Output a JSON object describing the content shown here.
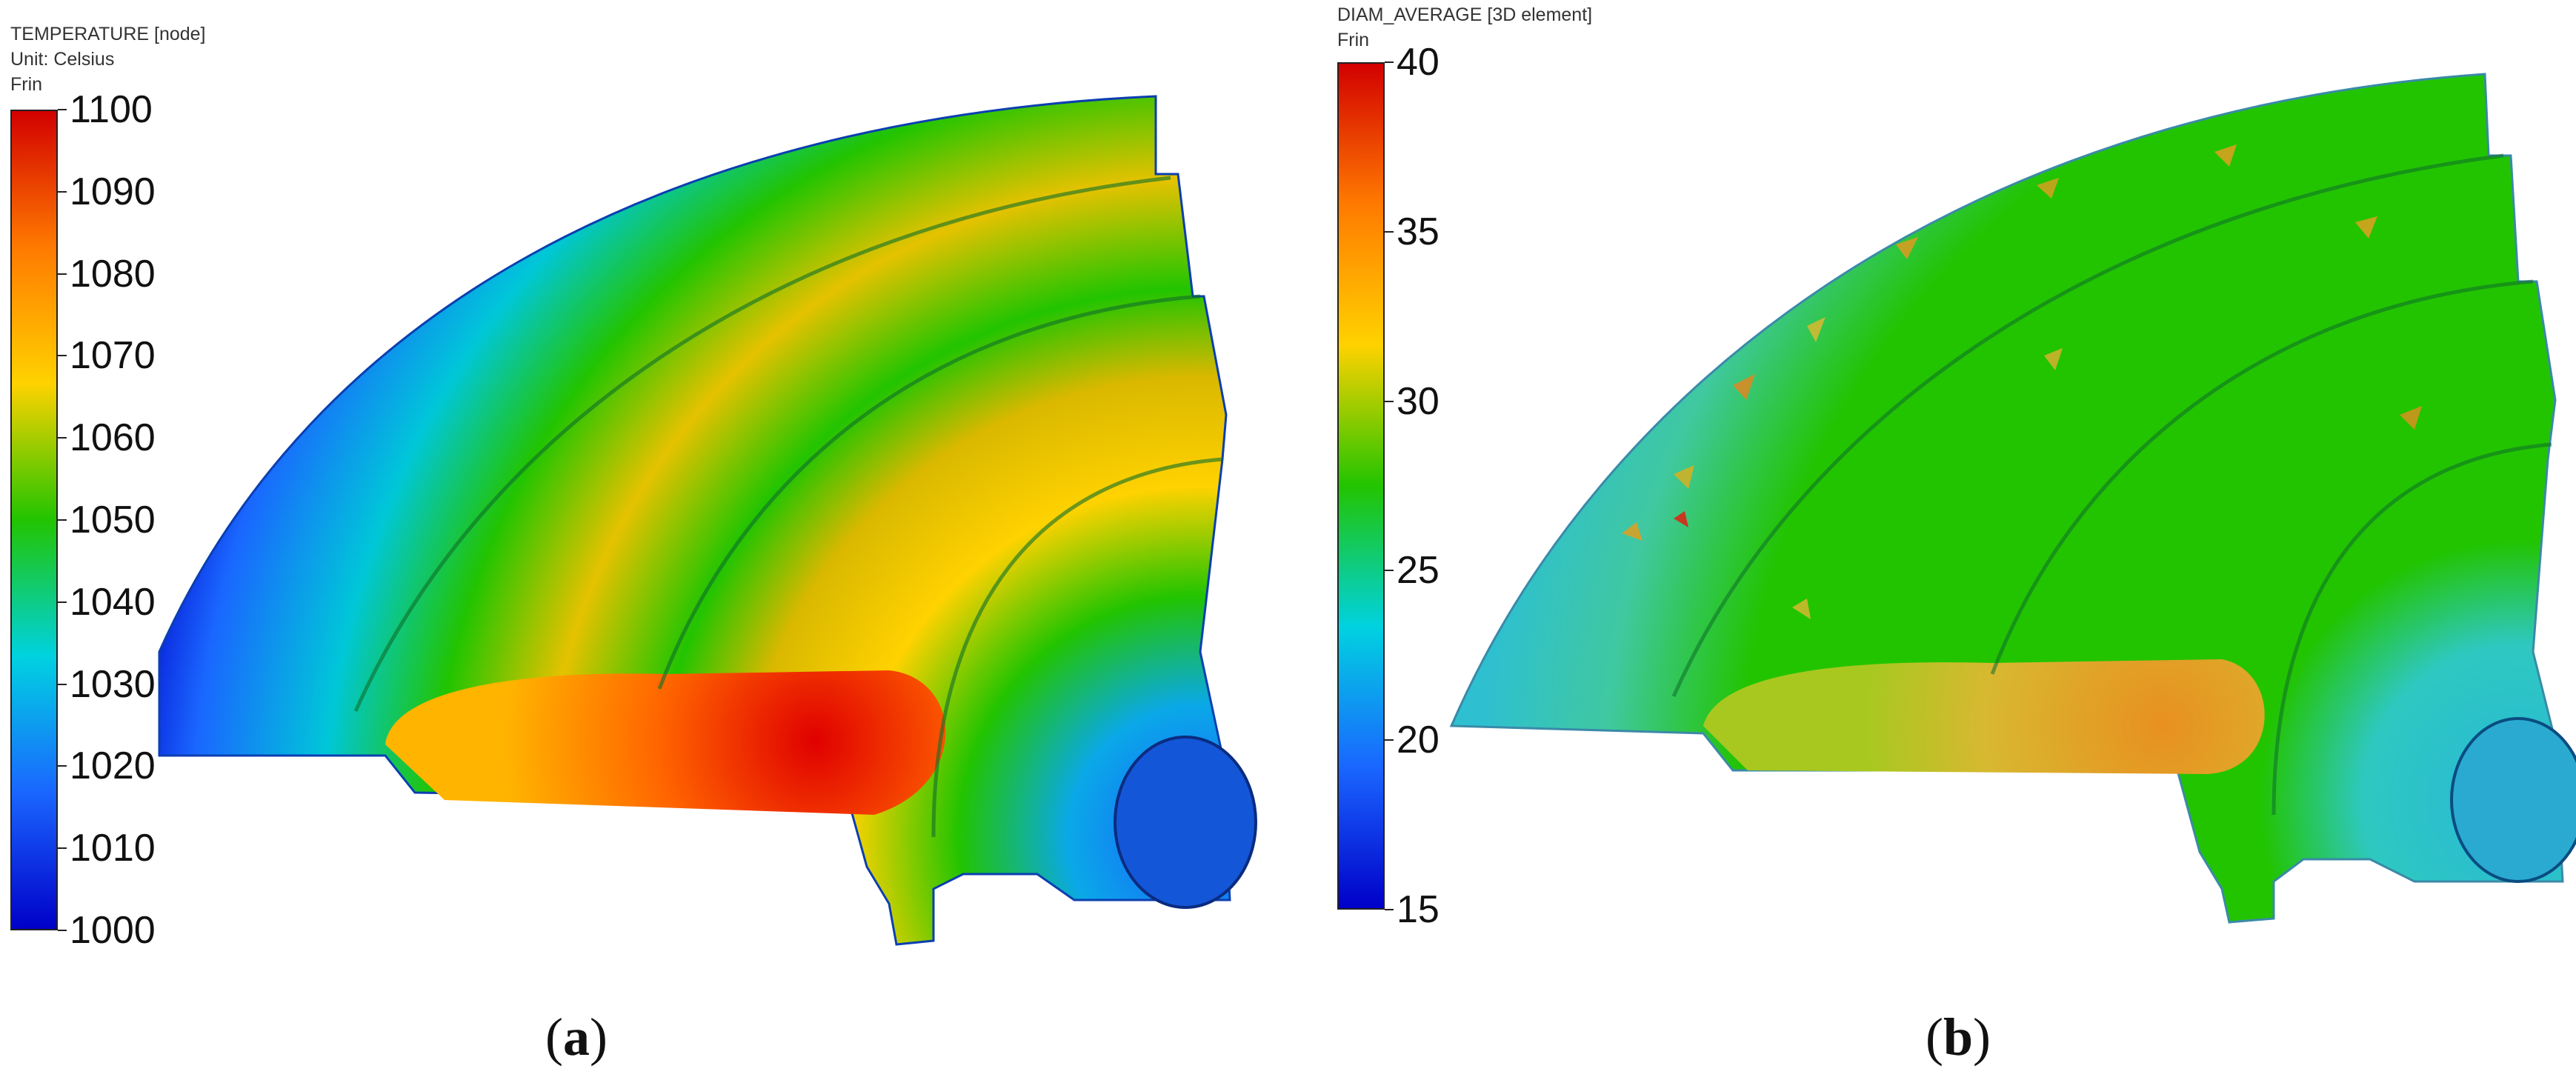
{
  "panel_a": {
    "header_lines": [
      "TEMPERATURE [node]",
      "Unit: Celsius",
      "Frin"
    ],
    "scale_ticks": [
      "1100",
      "1090",
      "1080",
      "1070",
      "1060",
      "1050",
      "1040",
      "1030",
      "1020",
      "1010",
      "1000"
    ],
    "caption_letter": "a",
    "colors": [
      "#d20000",
      "#ff7a00",
      "#ffd200",
      "#22c400",
      "#00d2e0",
      "#1a66ff",
      "#0000c8"
    ]
  },
  "panel_b": {
    "header_lines": [
      "DIAM_AVERAGE [3D element]",
      "Frin"
    ],
    "scale_ticks": [
      "40",
      "35",
      "30",
      "25",
      "20",
      "15"
    ],
    "caption_letter": "b",
    "colors": [
      "#d20000",
      "#ff7a00",
      "#ffd200",
      "#22c400",
      "#00d2e0",
      "#1a66ff",
      "#0000c8"
    ]
  }
}
